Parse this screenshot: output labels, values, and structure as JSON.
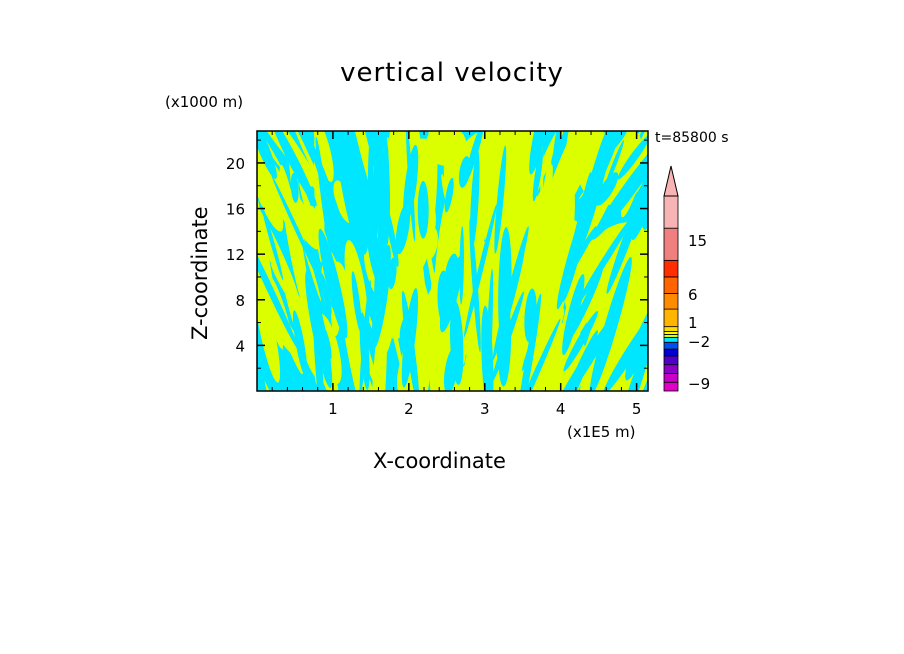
{
  "colors": {
    "cyan": "#00e6ff",
    "yellow": "#dcff00",
    "frame": "#000000"
  },
  "chart_data": {
    "type": "heatmap",
    "title": "vertical velocity",
    "xlabel": "X-coordinate",
    "ylabel": "Z-coordinate",
    "x_unit": "(x1E5 m)",
    "y_unit": "(x1000 m)",
    "time_label": "t=85800 s",
    "xlim": [
      0,
      5.15
    ],
    "ylim": [
      0,
      22.8
    ],
    "x_ticks": [
      1,
      2,
      3,
      4,
      5
    ],
    "y_ticks": [
      4,
      8,
      12,
      16,
      20
    ],
    "field_colors": [
      "#00e6ff",
      "#dcff00"
    ],
    "colorbar": {
      "levels": [
        {
          "color": "#e000c8"
        },
        {
          "color": "#c800c8"
        },
        {
          "color": "#8c00c8"
        },
        {
          "color": "#5000c8"
        },
        {
          "color": "#0000d2"
        },
        {
          "color": "#0050f0"
        },
        {
          "color": "#00e6ff"
        },
        {
          "color": "#dcff00"
        },
        {
          "color": "#ffff00"
        },
        {
          "color": "#ffdc00"
        },
        {
          "color": "#ffb400"
        },
        {
          "color": "#ff8c00"
        },
        {
          "color": "#ff6400"
        },
        {
          "color": "#ff2d00"
        },
        {
          "color": "#f08080"
        },
        {
          "color": "#f8b4b4"
        }
      ],
      "labels": [
        "15",
        "6",
        "1",
        "−2",
        "−9"
      ],
      "extend": "max"
    }
  }
}
